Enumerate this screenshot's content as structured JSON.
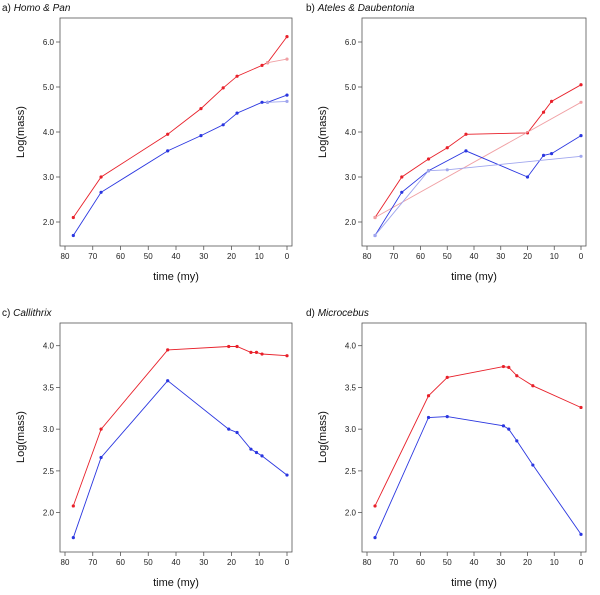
{
  "colors": {
    "red": "#e8202a",
    "blue": "#2a36e0",
    "red_light": "#f0a0a4",
    "blue_light": "#a0a6ee",
    "frame": "#555555"
  },
  "chart_data": [
    {
      "type": "line",
      "letter": "a)",
      "name": "Homo & Pan",
      "xlabel": "time (my)",
      "ylabel": "Log(mass)",
      "xlim": [
        80,
        0
      ],
      "ylim": [
        1.6,
        6.4
      ],
      "xticks": [
        "80",
        "70",
        "60",
        "50",
        "40",
        "30",
        "20",
        "10",
        "0"
      ],
      "yticks": [
        "2.0",
        "3.0",
        "4.0",
        "5.0",
        "6.0"
      ],
      "series": [
        {
          "name": "upper",
          "color": "red",
          "x": [
            77,
            67,
            43,
            31,
            23,
            18,
            9,
            7,
            0
          ],
          "y": [
            2.1,
            3.0,
            3.95,
            4.52,
            4.98,
            5.24,
            5.48,
            5.54,
            6.12
          ]
        },
        {
          "name": "upper-alt",
          "color": "red_light",
          "x": [
            7,
            0
          ],
          "y": [
            5.54,
            5.62
          ]
        },
        {
          "name": "lower",
          "color": "blue",
          "x": [
            77,
            67,
            43,
            31,
            23,
            18,
            9,
            7,
            0
          ],
          "y": [
            1.7,
            2.66,
            3.58,
            3.92,
            4.16,
            4.42,
            4.66,
            4.66,
            4.82
          ]
        },
        {
          "name": "lower-alt",
          "color": "blue_light",
          "x": [
            7,
            0
          ],
          "y": [
            4.66,
            4.68
          ]
        }
      ]
    },
    {
      "type": "line",
      "letter": "b)",
      "name": "Ateles & Daubentonia",
      "xlabel": "time (my)",
      "ylabel": "Log(mass)",
      "xlim": [
        80,
        0
      ],
      "ylim": [
        1.6,
        6.4
      ],
      "xticks": [
        "80",
        "70",
        "60",
        "50",
        "40",
        "30",
        "20",
        "10",
        "0"
      ],
      "yticks": [
        "2.0",
        "3.0",
        "4.0",
        "5.0",
        "6.0"
      ],
      "series": [
        {
          "name": "upper",
          "color": "red",
          "x": [
            77,
            67,
            57,
            50,
            43,
            20,
            14,
            11,
            0
          ],
          "y": [
            2.1,
            3.0,
            3.4,
            3.65,
            3.95,
            3.98,
            4.44,
            4.68,
            5.05
          ]
        },
        {
          "name": "upper-alt",
          "color": "red_light",
          "x": [
            77,
            0
          ],
          "y": [
            2.1,
            4.66
          ]
        },
        {
          "name": "lower",
          "color": "blue",
          "x": [
            77,
            67,
            57,
            43,
            20,
            14,
            11,
            0
          ],
          "y": [
            1.7,
            2.66,
            3.14,
            3.58,
            3.0,
            3.48,
            3.52,
            3.92
          ]
        },
        {
          "name": "lower-alt",
          "color": "blue_light",
          "x": [
            77,
            57,
            50,
            0
          ],
          "y": [
            1.7,
            3.14,
            3.16,
            3.46
          ]
        }
      ]
    },
    {
      "type": "line",
      "letter": "c)",
      "name": "Callithrix",
      "xlabel": "time (my)",
      "ylabel": "Log(mass)",
      "xlim": [
        80,
        0
      ],
      "ylim": [
        1.6,
        4.2
      ],
      "xticks": [
        "80",
        "70",
        "60",
        "50",
        "40",
        "30",
        "20",
        "10",
        "0"
      ],
      "yticks": [
        "2.0",
        "2.5",
        "3.0",
        "3.5",
        "4.0"
      ],
      "series": [
        {
          "name": "upper",
          "color": "red",
          "x": [
            77,
            67,
            43,
            21,
            18,
            13,
            11,
            9,
            0
          ],
          "y": [
            2.08,
            3.0,
            3.95,
            3.99,
            3.99,
            3.92,
            3.92,
            3.9,
            3.88
          ]
        },
        {
          "name": "lower",
          "color": "blue",
          "x": [
            77,
            67,
            43,
            21,
            18,
            13,
            11,
            9,
            0
          ],
          "y": [
            1.7,
            2.66,
            3.58,
            3.0,
            2.96,
            2.76,
            2.72,
            2.68,
            2.45
          ]
        }
      ]
    },
    {
      "type": "line",
      "letter": "d)",
      "name": "Microcebus",
      "xlabel": "time (my)",
      "ylabel": "Log(mass)",
      "xlim": [
        80,
        0
      ],
      "ylim": [
        1.6,
        4.2
      ],
      "xticks": [
        "80",
        "70",
        "60",
        "50",
        "40",
        "30",
        "20",
        "10",
        "0"
      ],
      "yticks": [
        "2.0",
        "2.5",
        "3.0",
        "3.5",
        "4.0"
      ],
      "series": [
        {
          "name": "upper",
          "color": "red",
          "x": [
            77,
            57,
            50,
            29,
            27,
            24,
            18,
            0
          ],
          "y": [
            2.08,
            3.4,
            3.62,
            3.75,
            3.74,
            3.64,
            3.52,
            3.26
          ]
        },
        {
          "name": "lower",
          "color": "blue",
          "x": [
            77,
            57,
            50,
            29,
            27,
            24,
            18,
            0
          ],
          "y": [
            1.7,
            3.14,
            3.15,
            3.04,
            3.0,
            2.86,
            2.57,
            1.74
          ]
        }
      ]
    }
  ]
}
